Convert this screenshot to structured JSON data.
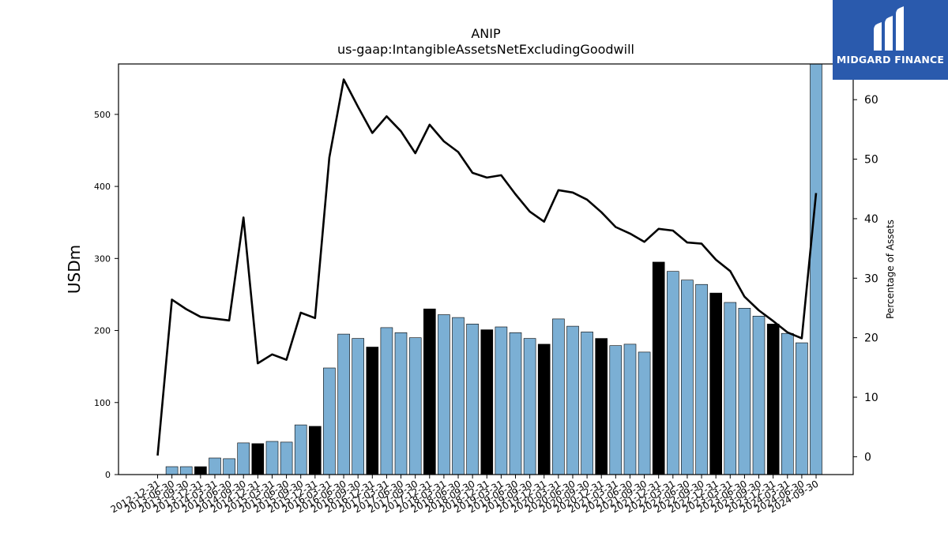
{
  "brand": {
    "name": "MIDGARD FINANCE",
    "bg_color": "#2a5aad"
  },
  "chart_data": {
    "type": "bar",
    "title": "ANIP",
    "subtitle": "us-gaap:IntangibleAssetsNetExcludingGoodwill",
    "ylabel": "USDm",
    "y2label": "Percentage of Assets",
    "ylim": [
      0,
      570
    ],
    "y2lim": [
      -3,
      66
    ],
    "yticks": [
      0,
      100,
      200,
      300,
      400,
      500
    ],
    "y2ticks": [
      0,
      10,
      20,
      30,
      40,
      50,
      60
    ],
    "grid": false,
    "bar_color": "#7bafd4",
    "q4_bar_color": "#000000",
    "line_color": "#000000",
    "categories": [
      "2012-12-31",
      "2013-06-30",
      "2013-09-30",
      "2013-12-31",
      "2014-03-31",
      "2014-06-30",
      "2014-09-30",
      "2014-12-31",
      "2015-03-31",
      "2015-06-30",
      "2015-09-30",
      "2015-12-31",
      "2016-03-31",
      "2016-06-30",
      "2016-09-30",
      "2016-12-31",
      "2017-03-31",
      "2017-06-30",
      "2017-09-30",
      "2017-12-31",
      "2018-03-31",
      "2018-06-30",
      "2018-09-30",
      "2018-12-31",
      "2019-03-31",
      "2019-06-30",
      "2019-09-30",
      "2019-12-31",
      "2020-03-31",
      "2020-06-30",
      "2020-09-30",
      "2020-12-31",
      "2021-03-31",
      "2021-06-30",
      "2021-09-30",
      "2021-12-31",
      "2022-03-31",
      "2022-06-30",
      "2022-09-30",
      "2022-12-31",
      "2023-03-31",
      "2023-06-30",
      "2023-09-30",
      "2023-12-31",
      "2024-03-31",
      "2024-06-30",
      "2024-09-30"
    ],
    "series": [
      {
        "kind": "bar",
        "axis": "left",
        "values": [
          0,
          11,
          11,
          11,
          23,
          22,
          44,
          43,
          46,
          45,
          69,
          67,
          148,
          195,
          189,
          177,
          204,
          197,
          190,
          230,
          222,
          218,
          209,
          201,
          205,
          197,
          189,
          181,
          216,
          206,
          198,
          189,
          179,
          181,
          170,
          295,
          282,
          270,
          264,
          252,
          239,
          231,
          220,
          209,
          196,
          183,
          570
        ]
      },
      {
        "kind": "line",
        "axis": "right",
        "values": [
          0.2,
          26.4,
          24.8,
          23.5,
          23.2,
          22.9,
          40.2,
          15.7,
          17.2,
          16.3,
          24.2,
          23.3,
          50.3,
          63.4,
          58.8,
          54.4,
          57.2,
          54.7,
          51.0,
          55.8,
          53.0,
          51.2,
          47.7,
          46.9,
          47.3,
          44.1,
          41.2,
          39.5,
          44.8,
          44.4,
          43.2,
          41.1,
          38.6,
          37.5,
          36.1,
          38.3,
          38.0,
          36.0,
          35.8,
          33.1,
          31.2,
          26.9,
          24.6,
          22.8,
          20.9,
          19.9,
          44.3
        ]
      }
    ]
  }
}
